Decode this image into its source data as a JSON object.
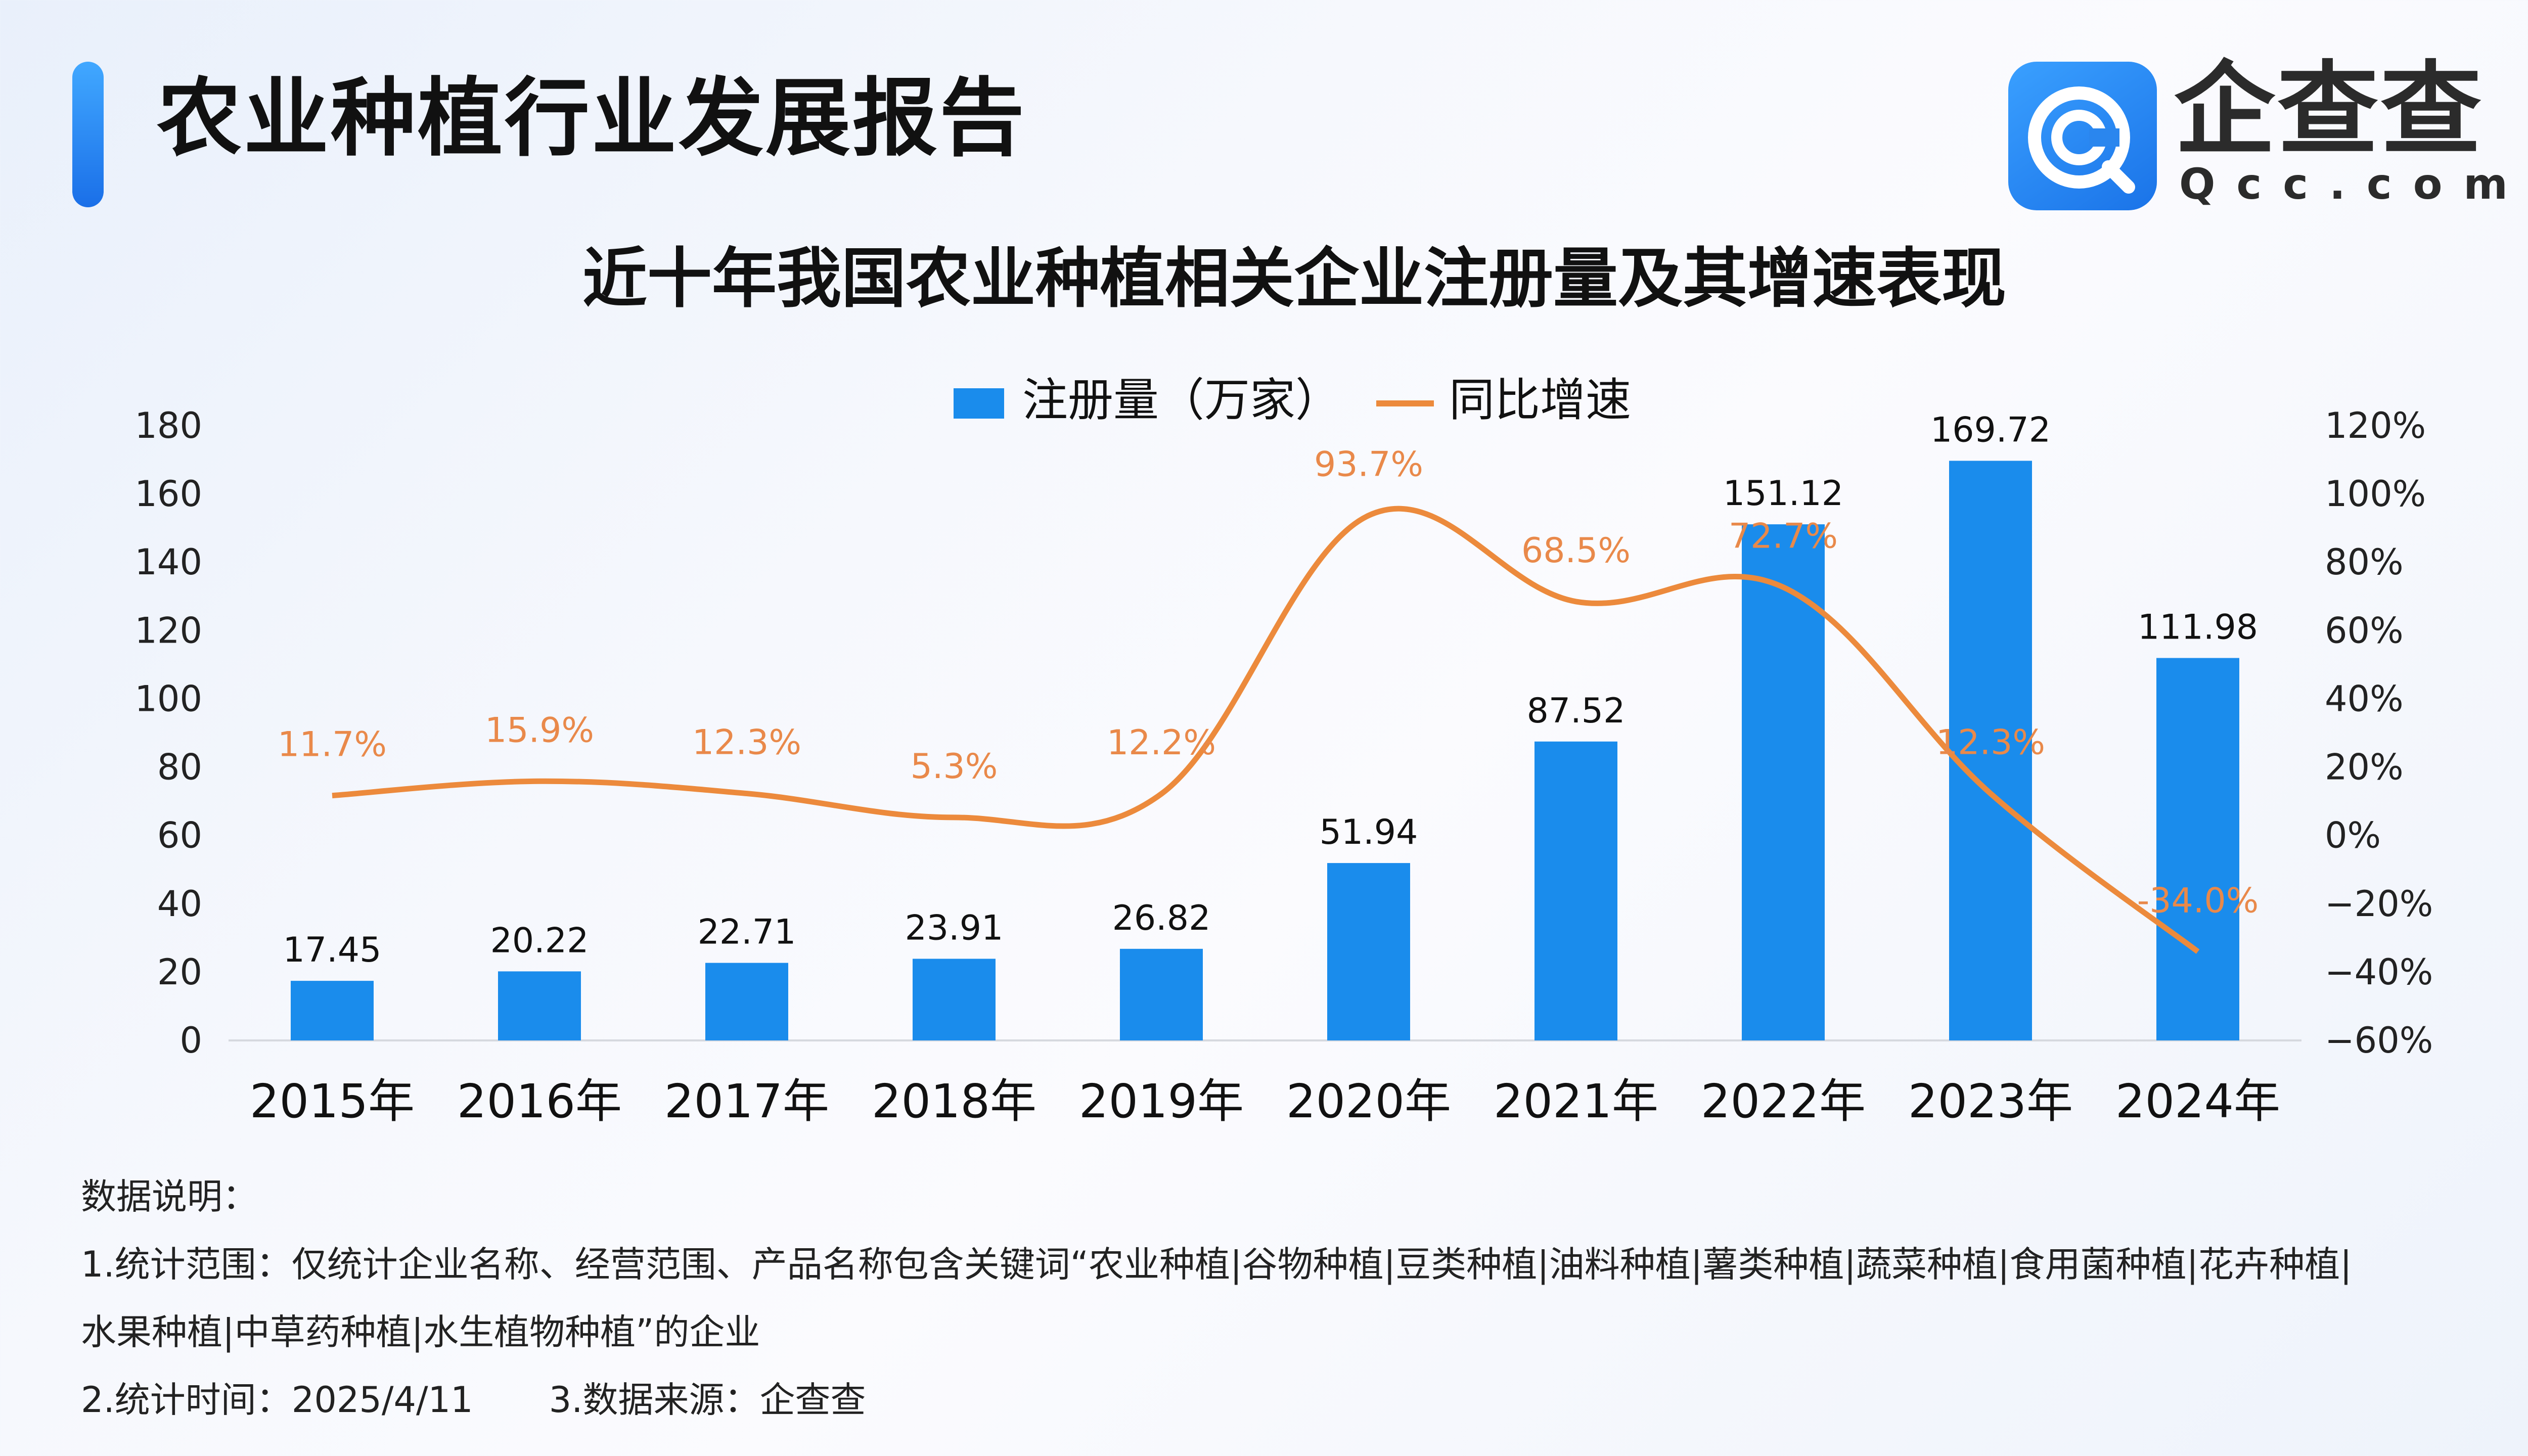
{
  "header": {
    "title": "农业种植行业发展报告",
    "brand": "企查查",
    "brand_sub": "Qcc.com"
  },
  "chart_data": {
    "type": "bar",
    "title": "近十年我国农业种植相关企业注册量及其增速表现",
    "categories": [
      "2015年",
      "2016年",
      "2017年",
      "2018年",
      "2019年",
      "2020年",
      "2021年",
      "2022年",
      "2023年",
      "2024年"
    ],
    "series": [
      {
        "name": "注册量（万家）",
        "type": "bar",
        "axis": "left",
        "values": [
          17.45,
          20.22,
          22.71,
          23.91,
          26.82,
          51.94,
          87.52,
          151.12,
          169.72,
          111.98
        ],
        "labels": [
          "17.45",
          "20.22",
          "22.71",
          "23.91",
          "26.82",
          "51.94",
          "87.52",
          "151.12",
          "169.72",
          "111.98"
        ]
      },
      {
        "name": "同比增速",
        "type": "line",
        "axis": "right",
        "values": [
          11.7,
          15.9,
          12.3,
          5.3,
          12.2,
          93.7,
          68.5,
          72.7,
          12.3,
          -34.0
        ],
        "labels": [
          "11.7%",
          "15.9%",
          "12.3%",
          "5.3%",
          "12.2%",
          "93.7%",
          "68.5%",
          "72.7%",
          "12.3%",
          "-34.0%"
        ]
      }
    ],
    "y_left": {
      "ylim": [
        0,
        180
      ],
      "ticks": [
        "0",
        "20",
        "40",
        "60",
        "80",
        "100",
        "120",
        "140",
        "160",
        "180"
      ]
    },
    "y_right": {
      "ylim": [
        -60,
        120
      ],
      "ticks": [
        "−60%",
        "−40%",
        "−20%",
        "0%",
        "20%",
        "40%",
        "60%",
        "80%",
        "100%",
        "120%"
      ]
    },
    "legend_position": "top-center",
    "grid": false,
    "colors": {
      "bar": "#1a8cec",
      "line": "#ec8a3c",
      "line_label": "#e9894a"
    }
  },
  "notes": {
    "heading": "数据说明：",
    "line1": "1.统计范围：仅统计企业名称、经营范围、产品名称包含关键词“农业种植|谷物种植|豆类种植|油料种植|薯类种植|蔬菜种植|食用菌种植|花卉种植|",
    "line2": "水果种植|中草药种植|水生植物种植”的企业",
    "time": "2.统计时间：2025/4/11",
    "source": "3.数据来源：企查查"
  }
}
